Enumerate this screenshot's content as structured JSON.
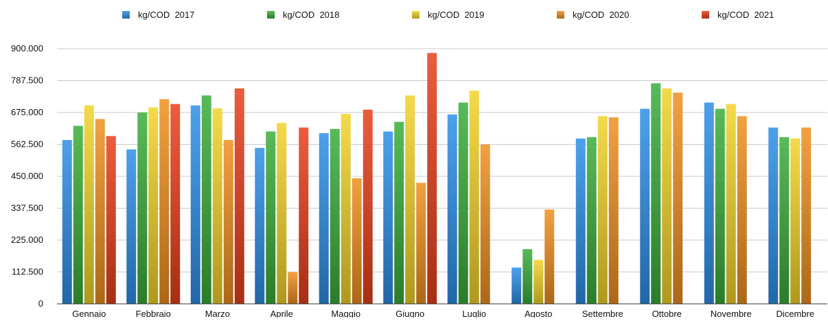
{
  "chart_data": {
    "type": "bar",
    "categories": [
      "Gennaio",
      "Febbraio",
      "Marzo",
      "Aprile",
      "Maggio",
      "Giugno",
      "Luglio",
      "Agosto",
      "Settembre",
      "Ottobre",
      "Novembre",
      "Dicembre"
    ],
    "series": [
      {
        "name": "kg/COD  2017",
        "color": "#2f8fe8",
        "values": [
          578000,
          545000,
          700000,
          550000,
          602000,
          608000,
          668000,
          128000,
          583000,
          688000,
          710000,
          622000
        ]
      },
      {
        "name": "kg/COD  2018",
        "color": "#3aae3a",
        "values": [
          628000,
          675000,
          735000,
          608000,
          617000,
          642000,
          710000,
          193000,
          588000,
          778000,
          688000,
          588000
        ]
      },
      {
        "name": "kg/COD  2019",
        "color": "#f2d42a",
        "values": [
          700000,
          693000,
          690000,
          638000,
          670000,
          735000,
          752000,
          155000,
          662000,
          760000,
          705000,
          583000
        ]
      },
      {
        "name": "kg/COD  2020",
        "color": "#ee9020",
        "values": [
          652000,
          722000,
          578000,
          112000,
          443000,
          427000,
          562000,
          333000,
          658000,
          745000,
          662000,
          622000
        ]
      },
      {
        "name": "kg/COD  2021",
        "color": "#e8401c",
        "values": [
          592000,
          705000,
          760000,
          622000,
          685000,
          885000,
          null,
          null,
          null,
          null,
          null,
          null
        ]
      }
    ],
    "yticks": [
      "0",
      "112.500",
      "225.000",
      "337.500",
      "450.000",
      "562.500",
      "675.000",
      "787.500",
      "900.000"
    ],
    "ylim": [
      0,
      900000
    ],
    "legend_position": "top",
    "grid": true
  }
}
